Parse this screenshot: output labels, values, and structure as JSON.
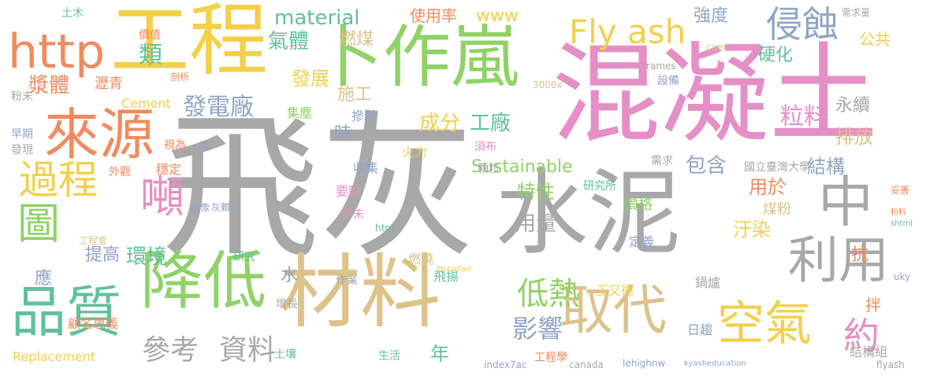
{
  "words": [
    {
      "text": "飛灰",
      "color": "#a8a8a8"
    },
    {
      "text": "混凝土",
      "color": "#e58fc6"
    },
    {
      "text": "水泥",
      "color": "#a8a8a8"
    },
    {
      "text": "工程",
      "color": "#f2d04a"
    },
    {
      "text": "材料",
      "color": "#ddc28a"
    },
    {
      "text": "卜作嵐",
      "color": "#8fd266"
    },
    {
      "text": "降低",
      "color": "#8fd266"
    },
    {
      "text": "品質",
      "color": "#5fc29a"
    },
    {
      "text": "來源",
      "color": "#f28a5e"
    },
    {
      "text": "http",
      "color": "#f28a5e"
    },
    {
      "text": "取代",
      "color": "#ddc28a"
    },
    {
      "text": "空氣",
      "color": "#f2d04a"
    },
    {
      "text": "利用",
      "color": "#a8a8a8"
    },
    {
      "text": "中",
      "color": "#a8a8a8"
    },
    {
      "text": "過程",
      "color": "#f2d04a"
    },
    {
      "text": "圖",
      "color": "#8fd266"
    },
    {
      "text": "噸",
      "color": "#e58fc6"
    },
    {
      "text": "Fly ash",
      "color": "#f2d04a"
    },
    {
      "text": "侵蝕",
      "color": "#8fa4c9"
    },
    {
      "text": "約",
      "color": "#e58fc6"
    },
    {
      "text": "參考",
      "color": "#a8a8a8"
    },
    {
      "text": "資料",
      "color": "#a8a8a8"
    },
    {
      "text": "低熱",
      "color": "#8fd266"
    },
    {
      "text": "影響",
      "color": "#8fa4c9"
    },
    {
      "text": "類",
      "color": "#5fc29a"
    },
    {
      "text": "漿體",
      "color": "#f28a5e"
    },
    {
      "text": "發電廠",
      "color": "#8fa4c9"
    },
    {
      "text": "material",
      "color": "#5fc29a"
    },
    {
      "text": "粒料",
      "color": "#e58fc6"
    },
    {
      "text": "環境",
      "color": "#5fc29a"
    },
    {
      "text": "提高",
      "color": "#8fa4c9"
    },
    {
      "text": "應",
      "color": "#8fa4c9"
    },
    {
      "text": "汙染",
      "color": "#f2d04a"
    },
    {
      "text": "結構",
      "color": "#8fa4c9"
    },
    {
      "text": "用於",
      "color": "#f28a5e"
    },
    {
      "text": "包含",
      "color": "#8fa4c9"
    },
    {
      "text": "Sustainable",
      "color": "#8fd266"
    },
    {
      "text": "特性",
      "color": "#8fd266"
    },
    {
      "text": "用量",
      "color": "#a8a8a8"
    },
    {
      "text": "成分",
      "color": "#f2d04a"
    },
    {
      "text": "工廠",
      "color": "#5fc29a"
    },
    {
      "text": "排放",
      "color": "#ddc28a"
    },
    {
      "text": "施工",
      "color": "#ddc28a"
    },
    {
      "text": "發展",
      "color": "#f2d04a"
    },
    {
      "text": "氣體",
      "color": "#5fc29a"
    },
    {
      "text": "燃煤",
      "color": "#ddc28a"
    },
    {
      "text": "強度",
      "color": "#8fa4c9"
    },
    {
      "text": "硬化",
      "color": "#5fc29a"
    },
    {
      "text": "永續",
      "color": "#a8a8a8"
    },
    {
      "text": "公共",
      "color": "#f2d04a"
    },
    {
      "text": "www",
      "color": "#f2d04a"
    },
    {
      "text": "使用率",
      "color": "#f28a5e"
    },
    {
      "text": "年",
      "color": "#5fc29a"
    },
    {
      "text": "水",
      "color": "#8fa4c9"
    },
    {
      "text": "時",
      "color": "#8fa4c9"
    },
    {
      "text": "抗",
      "color": "#f28a5e"
    },
    {
      "text": "拌",
      "color": "#f28a5e"
    },
    {
      "text": "煤粉",
      "color": "#ddc28a"
    },
    {
      "text": "價格",
      "color": "#8fd266"
    },
    {
      "text": "飛揚",
      "color": "#5fc29a"
    },
    {
      "text": "集塵",
      "color": "#8fd266"
    },
    {
      "text": "摻料",
      "color": "#8fa4c9"
    },
    {
      "text": "Cement",
      "color": "#f2d04a"
    },
    {
      "text": "瀝青",
      "color": "#f28a5e"
    },
    {
      "text": "穩定",
      "color": "#f28a5e"
    },
    {
      "text": "外觀",
      "color": "#f28a5e"
    },
    {
      "text": "顧名思義",
      "color": "#f28a5e"
    },
    {
      "text": "收集",
      "color": "#8fa4c9"
    },
    {
      "text": "火力",
      "color": "#f2d04a"
    },
    {
      "text": "要點",
      "color": "#e58fc6"
    },
    {
      "text": "燃燒",
      "color": "#ddc28a"
    },
    {
      "text": "鍋爐",
      "color": "#a8a8a8"
    },
    {
      "text": "王又德",
      "color": "#f2d04a"
    },
    {
      "text": "日趨",
      "color": "#8fa4c9"
    },
    {
      "text": "定義",
      "color": "#8fa4c9"
    },
    {
      "text": "結構組",
      "color": "#a8a8a8"
    },
    {
      "text": "工程學",
      "color": "#f28a5e"
    },
    {
      "text": "生活",
      "color": "#5fc29a"
    },
    {
      "text": "Replacement",
      "color": "#f2d04a"
    },
    {
      "text": "作業",
      "color": "#a8a8a8"
    },
    {
      "text": "增長",
      "color": "#a8a8a8"
    },
    {
      "text": "土壤",
      "color": "#5fc29a"
    },
    {
      "text": "研究所",
      "color": "#5fc29a"
    },
    {
      "text": "國立臺灣大學",
      "color": "#a8a8a8"
    },
    {
      "text": "需求",
      "color": "#a8a8a8"
    },
    {
      "text": "顆粒",
      "color": "#a8a8a8"
    },
    {
      "text": "須布",
      "color": "#e58fc6"
    },
    {
      "text": "尚未",
      "color": "#e58fc6"
    },
    {
      "text": "設備",
      "color": "#8fa4c9"
    },
    {
      "text": "研究",
      "color": "#5fc29a"
    },
    {
      "text": "影像",
      "color": "#8fa4c9"
    },
    {
      "text": "灰顆",
      "color": "#8fa4c9"
    },
    {
      "text": "指",
      "color": "#8fa4c9"
    },
    {
      "text": "視為",
      "color": "#f28a5e"
    },
    {
      "text": "土木",
      "color": "#5fc29a"
    },
    {
      "text": "價值",
      "color": "#f28a5e"
    },
    {
      "text": "剖析",
      "color": "#f28a5e"
    },
    {
      "text": "粉末",
      "color": "#a8a8a8"
    },
    {
      "text": "早期",
      "color": "#8fa4c9"
    },
    {
      "text": "發現",
      "color": "#a8a8a8"
    },
    {
      "text": "工程會",
      "color": "#ddc28a"
    },
    {
      "text": "lehighnw",
      "color": "#8fa4c9"
    },
    {
      "text": "kyasheducation",
      "color": "#8fa4c9"
    },
    {
      "text": "canada",
      "color": "#a8a8a8"
    },
    {
      "text": "index7ac",
      "color": "#8fa4c9"
    },
    {
      "text": "flyash",
      "color": "#a8a8a8"
    },
    {
      "text": "妥善",
      "color": "#f28a5e"
    },
    {
      "text": "粉料",
      "color": "#f28a5e"
    },
    {
      "text": "需求量",
      "color": "#a8a8a8"
    },
    {
      "text": "Frames",
      "color": "#a8a8a8"
    },
    {
      "text": "3000x",
      "color": "#ddc28a"
    },
    {
      "text": "Pozzolan",
      "color": "#f2d04a"
    },
    {
      "text": "htm",
      "color": "#5fc29a"
    },
    {
      "text": "uky",
      "color": "#8fa4c9"
    },
    {
      "text": "shtml",
      "color": "#5fc29a"
    },
    {
      "text": "caer",
      "color": "#ddc28a"
    }
  ]
}
